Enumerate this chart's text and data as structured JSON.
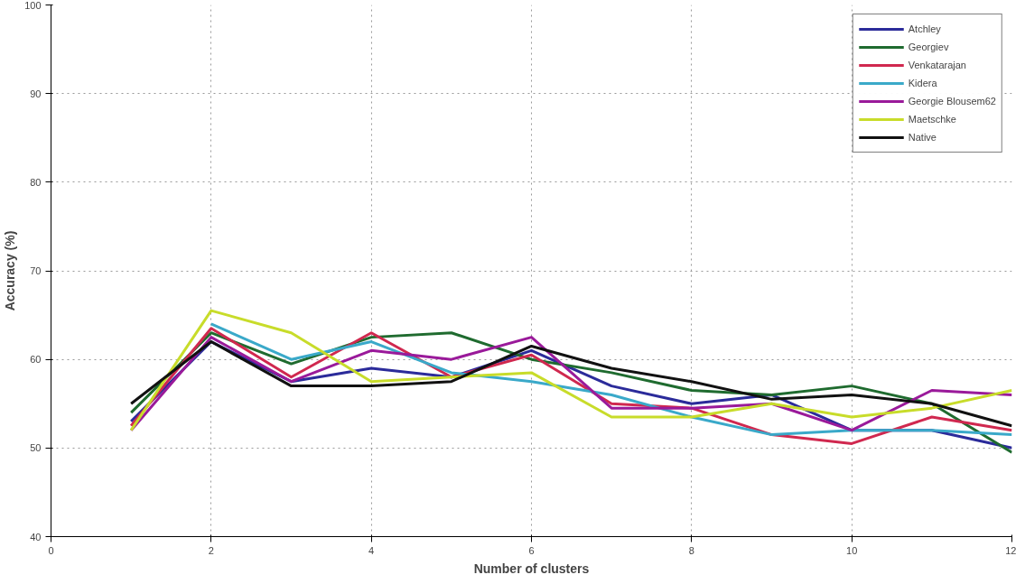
{
  "chart_data": {
    "type": "line",
    "xlabel": "Number of clusters",
    "ylabel": "Accuracy (%)",
    "x": [
      1,
      2,
      3,
      4,
      5,
      6,
      7,
      8,
      9,
      10,
      11,
      12
    ],
    "xlim": [
      0,
      12
    ],
    "xticks": [
      0,
      2,
      4,
      6,
      8,
      10,
      12
    ],
    "ylim": [
      40,
      100
    ],
    "yticks": [
      40,
      50,
      60,
      70,
      80,
      90,
      100
    ],
    "grid": true,
    "legend": "top right",
    "line_style": "solid",
    "series": [
      {
        "name": "Atchley",
        "color": "#2b2b9a",
        "values": [
          53,
          62,
          57.5,
          59,
          58,
          61,
          57,
          55,
          56,
          52,
          52,
          50
        ]
      },
      {
        "name": "Georgiev",
        "color": "#1f6b2f",
        "values": [
          54,
          63,
          59.5,
          62.5,
          63,
          60,
          58.5,
          56.5,
          56,
          57,
          55,
          49.5
        ]
      },
      {
        "name": "Venkatarajan",
        "color": "#d0284f",
        "values": [
          52.5,
          63.5,
          58,
          63,
          58,
          60.5,
          55,
          54.5,
          51.5,
          50.5,
          53.5,
          52
        ]
      },
      {
        "name": "Kidera",
        "color": "#3aa9c9",
        "values": [
          null,
          64,
          60,
          62,
          58.5,
          57.5,
          56,
          53.5,
          51.5,
          52,
          52,
          51.5
        ]
      },
      {
        "name": "Georgie Blousem62",
        "color": "#9a1a9a",
        "values": [
          52,
          62.5,
          57.5,
          61,
          60,
          62.5,
          54.5,
          54.5,
          55,
          52,
          56.5,
          56
        ]
      },
      {
        "name": "Maetschke",
        "color": "#c8dc2a",
        "values": [
          52,
          65.5,
          63,
          57.5,
          58,
          58.5,
          53.5,
          53.5,
          55,
          53.5,
          54.5,
          56.5
        ]
      },
      {
        "name": "Native",
        "color": "#111111",
        "values": [
          55,
          62,
          57,
          57,
          57.5,
          61.5,
          59,
          57.5,
          55.5,
          56,
          55,
          52.5
        ]
      }
    ]
  }
}
